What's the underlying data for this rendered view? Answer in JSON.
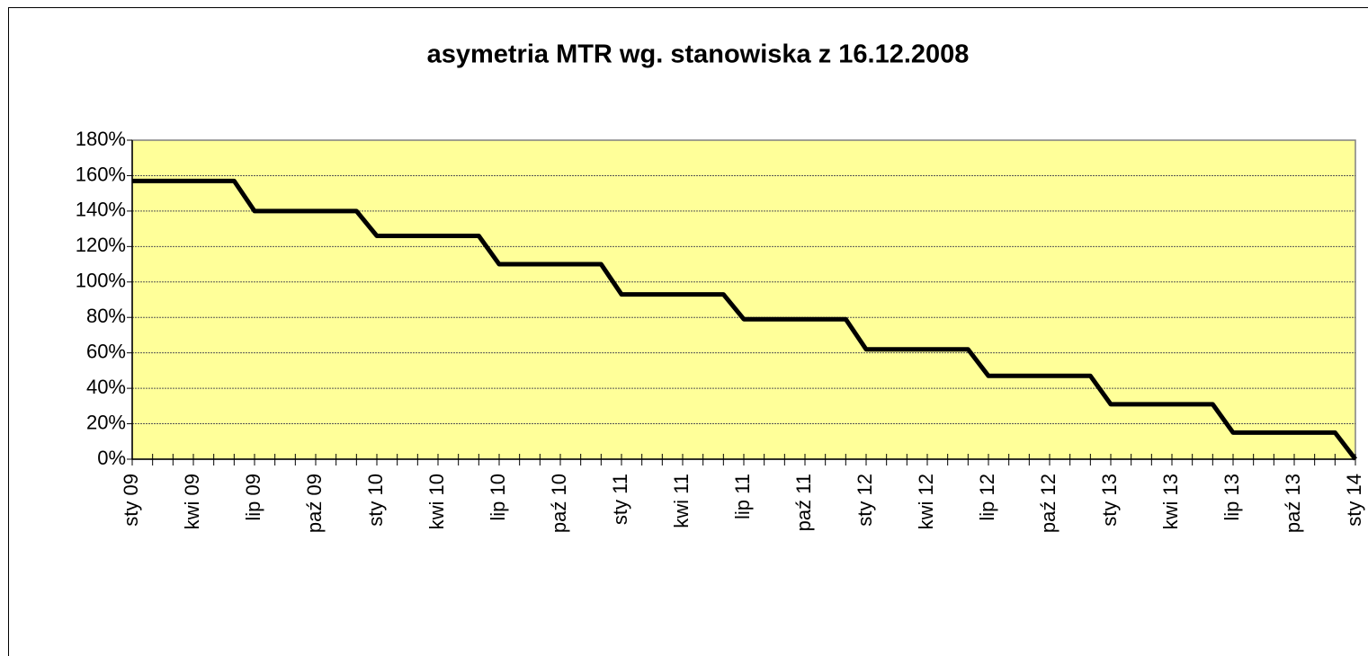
{
  "chart_data": {
    "type": "line",
    "title": "asymetria MTR wg. stanowiska z 16.12.2008",
    "categories": [
      "sty 09",
      null,
      null,
      "kwi 09",
      null,
      null,
      "lip 09",
      null,
      null,
      "paź 09",
      null,
      null,
      "sty 10",
      null,
      null,
      "kwi 10",
      null,
      null,
      "lip 10",
      null,
      null,
      "paź 10",
      null,
      null,
      "sty 11",
      null,
      null,
      "kwi 11",
      null,
      null,
      "lip 11",
      null,
      null,
      "paź 11",
      null,
      null,
      "sty 12",
      null,
      null,
      "kwi 12",
      null,
      null,
      "lip 12",
      null,
      null,
      "paź 12",
      null,
      null,
      "sty 13",
      null,
      null,
      "kwi 13",
      null,
      null,
      "lip 13",
      null,
      null,
      "paź 13",
      null,
      null,
      "sty 14"
    ],
    "series": [
      {
        "name": "asymetria MTR",
        "color": "#000000",
        "values": [
          157,
          157,
          157,
          157,
          157,
          157,
          140,
          140,
          140,
          140,
          140,
          140,
          126,
          126,
          126,
          126,
          126,
          126,
          110,
          110,
          110,
          110,
          110,
          110,
          93,
          93,
          93,
          93,
          93,
          93,
          79,
          79,
          79,
          79,
          79,
          79,
          62,
          62,
          62,
          62,
          62,
          62,
          47,
          47,
          47,
          47,
          47,
          47,
          31,
          31,
          31,
          31,
          31,
          31,
          15,
          15,
          15,
          15,
          15,
          15,
          0
        ]
      }
    ],
    "ylim": [
      0,
      180
    ],
    "yticks": [
      {
        "value": 0,
        "label": "0%"
      },
      {
        "value": 20,
        "label": "20%"
      },
      {
        "value": 40,
        "label": "40%"
      },
      {
        "value": 60,
        "label": "60%"
      },
      {
        "value": 80,
        "label": "80%"
      },
      {
        "value": 100,
        "label": "100%"
      },
      {
        "value": 120,
        "label": "120%"
      },
      {
        "value": 140,
        "label": "140%"
      },
      {
        "value": 160,
        "label": "160%"
      },
      {
        "value": 180,
        "label": "180%"
      }
    ],
    "grid": true,
    "plot_background": "#ffff99"
  }
}
